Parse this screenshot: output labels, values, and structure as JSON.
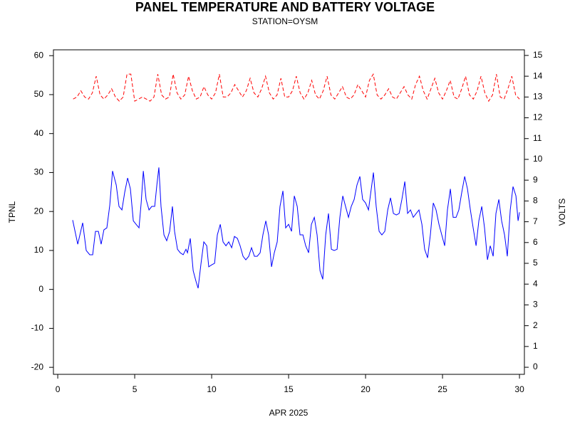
{
  "chart_data": {
    "type": "line",
    "title": "PANEL TEMPERATURE AND BATTERY VOLTAGE",
    "subtitle": "STATION=OYSM",
    "xlabel": "APR 2025",
    "ylabel": "TPNL",
    "y2label": "VOLTS",
    "xlim": [
      -0.28,
      30.32
    ],
    "xticks": [
      0,
      5,
      10,
      15,
      20,
      25,
      30
    ],
    "ylim": [
      -21.8,
      61.5
    ],
    "yticks": [
      -20,
      -10,
      0,
      10,
      20,
      30,
      40,
      50,
      60
    ],
    "y2lim": [
      -0.34,
      15.27
    ],
    "y2ticks": [
      0,
      1,
      2,
      3,
      4,
      5,
      6,
      7,
      8,
      9,
      10,
      11,
      12,
      13,
      14,
      15
    ],
    "series": [
      {
        "color": "#0000ff",
        "line_style": "solid",
        "axis": "y",
        "x": [
          0.97,
          1.3,
          1.62,
          1.85,
          2.08,
          2.27,
          2.45,
          2.64,
          2.82,
          3.0,
          3.19,
          3.38,
          3.56,
          3.8,
          3.98,
          4.17,
          4.35,
          4.54,
          4.72,
          4.91,
          5.09,
          5.28,
          5.42,
          5.56,
          5.74,
          5.93,
          6.11,
          6.3,
          6.44,
          6.57,
          6.71,
          6.9,
          7.08,
          7.27,
          7.45,
          7.59,
          7.78,
          7.96,
          8.15,
          8.33,
          8.43,
          8.61,
          8.8,
          8.98,
          9.12,
          9.31,
          9.49,
          9.68,
          9.81,
          10.0,
          10.19,
          10.37,
          10.56,
          10.74,
          10.93,
          11.11,
          11.3,
          11.48,
          11.67,
          11.85,
          12.04,
          12.22,
          12.41,
          12.59,
          12.78,
          12.96,
          13.15,
          13.33,
          13.52,
          13.7,
          13.89,
          14.07,
          14.26,
          14.44,
          14.63,
          14.81,
          15.0,
          15.19,
          15.37,
          15.56,
          15.74,
          15.93,
          16.11,
          16.3,
          16.48,
          16.67,
          16.85,
          17.04,
          17.22,
          17.41,
          17.59,
          17.78,
          17.96,
          18.15,
          18.33,
          18.52,
          18.7,
          18.89,
          19.07,
          19.26,
          19.44,
          19.63,
          19.81,
          20.0,
          20.19,
          20.37,
          20.51,
          20.69,
          20.88,
          21.06,
          21.25,
          21.44,
          21.62,
          21.81,
          22.0,
          22.18,
          22.36,
          22.55,
          22.73,
          22.92,
          23.1,
          23.29,
          23.47,
          23.66,
          23.84,
          24.03,
          24.21,
          24.4,
          24.58,
          24.77,
          24.95,
          25.14,
          25.32,
          25.51,
          25.69,
          25.88,
          26.06,
          26.25,
          26.44,
          26.62,
          26.81,
          26.99,
          27.18,
          27.36,
          27.55,
          27.73,
          27.92,
          28.1,
          28.29,
          28.47,
          28.66,
          28.84,
          29.03,
          29.21,
          29.4,
          29.58,
          29.77,
          29.91,
          30.0
        ],
        "values": [
          17.8,
          11.6,
          17.1,
          10.0,
          8.9,
          8.9,
          14.9,
          14.9,
          11.6,
          15.3,
          15.8,
          21.6,
          30.4,
          26.8,
          21.3,
          20.4,
          24.9,
          28.6,
          25.8,
          17.6,
          16.7,
          15.8,
          22.2,
          30.4,
          23.1,
          20.4,
          21.3,
          21.3,
          26.8,
          31.3,
          21.3,
          14.0,
          12.5,
          14.9,
          21.3,
          14.9,
          10.3,
          9.4,
          8.9,
          10.3,
          9.4,
          13.1,
          4.8,
          2.1,
          0.3,
          6.7,
          12.2,
          11.2,
          5.8,
          6.3,
          6.7,
          14.0,
          16.7,
          12.2,
          11.2,
          12.2,
          10.7,
          13.6,
          13.1,
          11.2,
          8.5,
          7.6,
          8.5,
          10.7,
          8.5,
          8.5,
          9.4,
          14.0,
          17.6,
          14.0,
          5.8,
          9.4,
          12.2,
          21.3,
          25.3,
          15.8,
          16.7,
          14.9,
          24.0,
          21.3,
          14.0,
          14.0,
          11.2,
          9.4,
          16.7,
          18.5,
          14.0,
          4.8,
          2.6,
          14.0,
          19.5,
          10.3,
          10.0,
          10.3,
          18.5,
          24.0,
          21.3,
          18.5,
          21.3,
          23.1,
          26.8,
          29.0,
          23.1,
          22.2,
          20.4,
          25.8,
          30.0,
          21.3,
          14.9,
          14.0,
          14.9,
          20.4,
          23.5,
          19.5,
          19.1,
          19.5,
          23.1,
          27.7,
          19.5,
          20.4,
          18.5,
          19.5,
          20.4,
          16.7,
          10.3,
          8.1,
          14.0,
          22.2,
          20.4,
          16.7,
          14.0,
          11.2,
          20.4,
          25.8,
          18.5,
          18.5,
          20.4,
          24.9,
          29.0,
          25.8,
          20.4,
          15.8,
          11.2,
          17.6,
          21.3,
          15.8,
          7.6,
          11.2,
          8.5,
          19.5,
          23.1,
          17.6,
          14.0,
          8.5,
          20.4,
          26.4,
          24.0,
          17.6,
          19.8
        ]
      },
      {
        "color": "#ff0000",
        "line_style": "dashed",
        "axis": "y2",
        "x": [
          1,
          1.25,
          1.5,
          1.75,
          2,
          2.25,
          2.5,
          2.75,
          3,
          3.25,
          3.5,
          3.75,
          4,
          4.25,
          4.5,
          4.75,
          5,
          5.25,
          5.5,
          5.75,
          6,
          6.25,
          6.5,
          6.75,
          7,
          7.25,
          7.5,
          7.75,
          8,
          8.25,
          8.5,
          8.75,
          9,
          9.25,
          9.5,
          9.75,
          10,
          10.25,
          10.5,
          10.75,
          11,
          11.25,
          11.5,
          11.75,
          12,
          12.25,
          12.5,
          12.75,
          13,
          13.25,
          13.5,
          13.75,
          14,
          14.25,
          14.5,
          14.75,
          15,
          15.25,
          15.5,
          15.75,
          16,
          16.25,
          16.5,
          16.75,
          17,
          17.25,
          17.5,
          17.75,
          18,
          18.25,
          18.5,
          18.75,
          19,
          19.25,
          19.5,
          19.75,
          20,
          20.25,
          20.5,
          20.75,
          21,
          21.25,
          21.5,
          21.75,
          22,
          22.25,
          22.5,
          22.75,
          23,
          23.25,
          23.5,
          23.75,
          24,
          24.25,
          24.5,
          24.75,
          25,
          25.25,
          25.5,
          25.75,
          26,
          26.25,
          26.5,
          26.75,
          27,
          27.25,
          27.5,
          27.75,
          28,
          28.25,
          28.5,
          28.75,
          29,
          29.25,
          29.5,
          29.75,
          30
        ],
        "values": [
          12.9,
          13.0,
          13.3,
          13.0,
          12.9,
          13.2,
          14.0,
          13.1,
          12.9,
          13.1,
          13.4,
          13.0,
          12.8,
          13.0,
          14.1,
          14.1,
          12.8,
          12.9,
          13.0,
          12.9,
          12.8,
          13.0,
          14.1,
          13.1,
          12.9,
          13.0,
          14.1,
          13.2,
          12.9,
          13.1,
          14.0,
          13.3,
          12.9,
          13.0,
          13.5,
          13.1,
          12.9,
          13.2,
          14.1,
          13.0,
          13.0,
          13.2,
          13.6,
          13.3,
          13.0,
          13.3,
          13.9,
          13.2,
          13.0,
          13.4,
          14.0,
          13.2,
          12.9,
          13.1,
          13.9,
          13.0,
          13.0,
          13.3,
          14.0,
          13.2,
          12.9,
          13.2,
          13.8,
          13.1,
          12.9,
          13.3,
          14.0,
          13.1,
          12.9,
          13.2,
          13.5,
          13.0,
          12.9,
          13.1,
          13.6,
          13.3,
          13.0,
          13.8,
          14.1,
          13.1,
          12.9,
          13.1,
          13.4,
          13.0,
          12.9,
          13.2,
          13.5,
          13.1,
          12.9,
          13.6,
          14.0,
          13.3,
          12.9,
          13.4,
          13.9,
          13.2,
          12.9,
          13.3,
          13.8,
          13.0,
          12.9,
          13.4,
          14.0,
          13.1,
          12.9,
          13.3,
          14.0,
          13.2,
          12.8,
          13.1,
          14.1,
          13.0,
          12.9,
          13.4,
          14.0,
          13.1,
          12.9
        ]
      }
    ]
  }
}
